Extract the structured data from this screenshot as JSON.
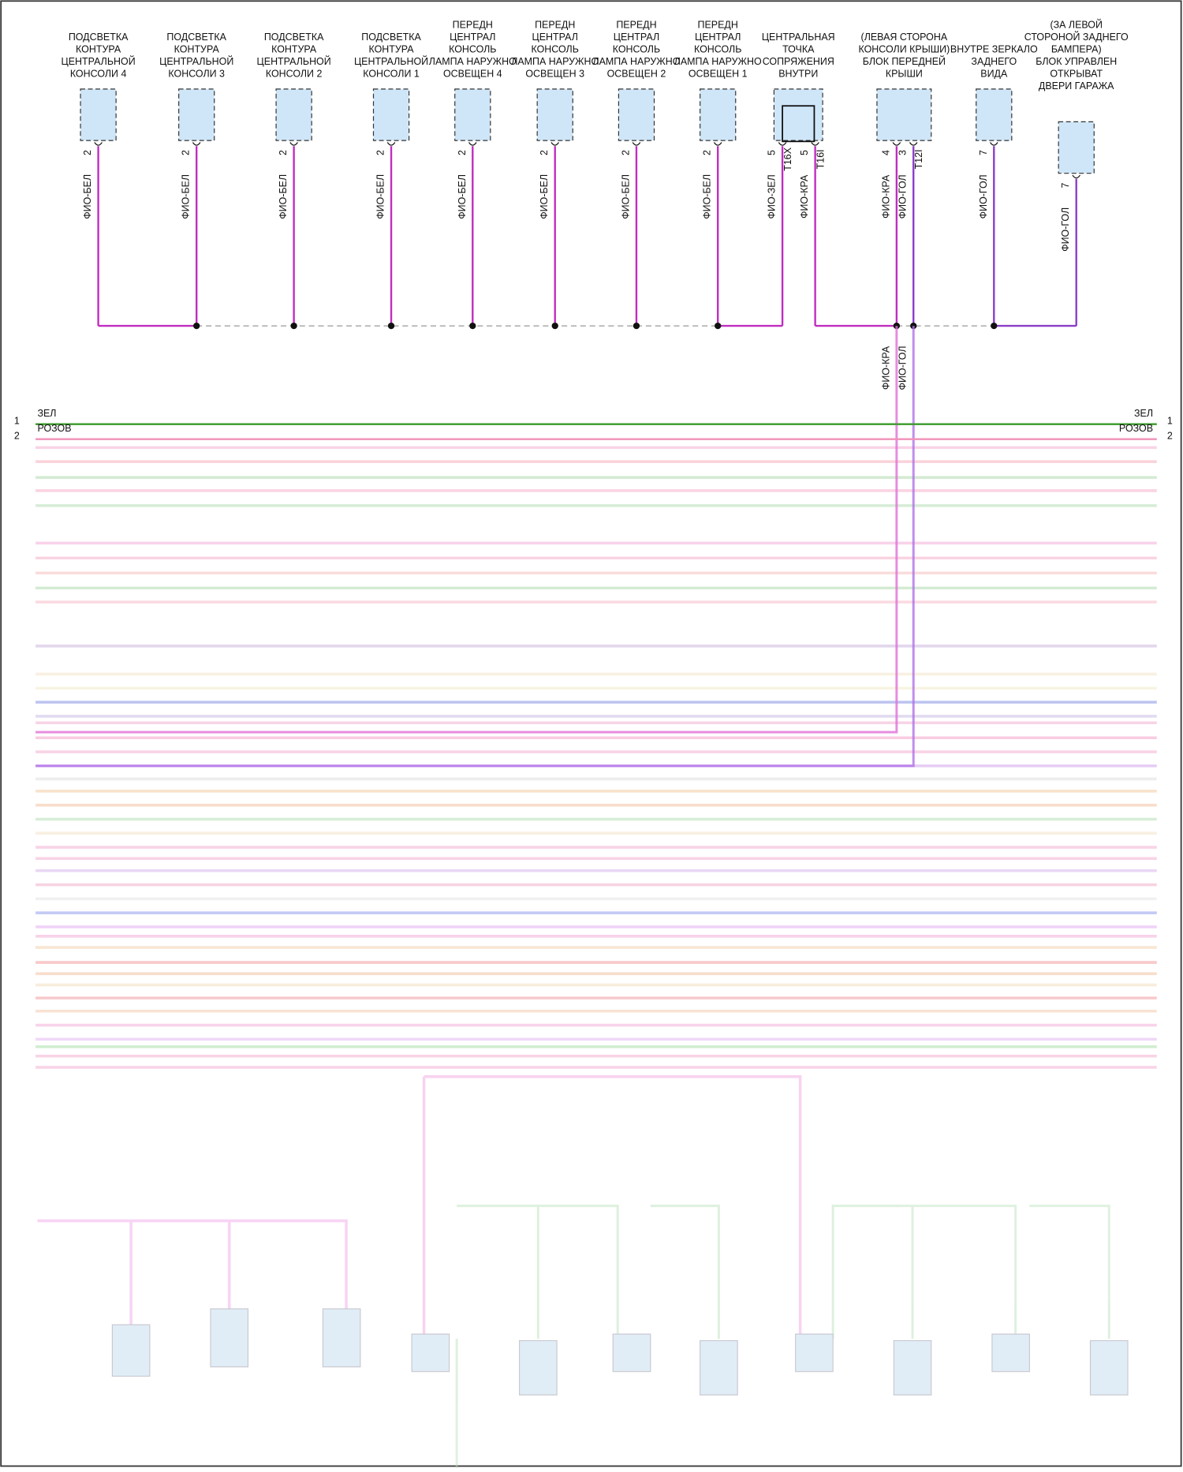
{
  "components": [
    {
      "label": [
        "ПОДСВЕТКА",
        "КОНТУРА",
        "ЦЕНТРАЛЬНОЙ",
        "КОНСОЛИ 4"
      ],
      "pins": [
        {
          "pin": "2",
          "wire": "ФИО-БЕЛ"
        }
      ]
    },
    {
      "label": [
        "ПОДСВЕТКА",
        "КОНТУРА",
        "ЦЕНТРАЛЬНОЙ",
        "КОНСОЛИ 3"
      ],
      "pins": [
        {
          "pin": "2",
          "wire": "ФИО-БЕЛ"
        }
      ]
    },
    {
      "label": [
        "ПОДСВЕТКА",
        "КОНТУРА",
        "ЦЕНТРАЛЬНОЙ",
        "КОНСОЛИ 2"
      ],
      "pins": [
        {
          "pin": "2",
          "wire": "ФИО-БЕЛ"
        }
      ]
    },
    {
      "label": [
        "ПОДСВЕТКА",
        "КОНТУРА",
        "ЦЕНТРАЛЬНОЙ",
        "КОНСОЛИ 1"
      ],
      "pins": [
        {
          "pin": "2",
          "wire": "ФИО-БЕЛ"
        }
      ]
    },
    {
      "label": [
        "ПЕРЕДН",
        "ЦЕНТРАЛ",
        "КОНСОЛЬ",
        "ЛАМПА НАРУЖНО",
        "ОСВЕЩЕН 4"
      ],
      "pins": [
        {
          "pin": "2",
          "wire": "ФИО-БЕЛ"
        }
      ]
    },
    {
      "label": [
        "ПЕРЕДН",
        "ЦЕНТРАЛ",
        "КОНСОЛЬ",
        "ЛАМПА НАРУЖНО",
        "ОСВЕЩЕН 3"
      ],
      "pins": [
        {
          "pin": "2",
          "wire": "ФИО-БЕЛ"
        }
      ]
    },
    {
      "label": [
        "ПЕРЕДН",
        "ЦЕНТРАЛ",
        "КОНСОЛЬ",
        "ЛАМПА НАРУЖНО",
        "ОСВЕЩЕН 2"
      ],
      "pins": [
        {
          "pin": "2",
          "wire": "ФИО-БЕЛ"
        }
      ]
    },
    {
      "label": [
        "ПЕРЕДН",
        "ЦЕНТРАЛ",
        "КОНСОЛЬ",
        "ЛАМПА НАРУЖНО",
        "ОСВЕЩЕН 1"
      ],
      "pins": [
        {
          "pin": "2",
          "wire": "ФИО-БЕЛ"
        }
      ]
    },
    {
      "label": [
        "ЦЕНТРАЛЬНАЯ",
        "ТОЧКА",
        "СОПРЯЖЕНИЯ",
        "ВНУТРИ"
      ],
      "pins": [
        {
          "pin": "5",
          "wire": "ФИО-ЗЕЛ",
          "connector": "T16X"
        },
        {
          "pin": "5",
          "wire": "ФИО-КРА",
          "connector": "T16I"
        }
      ]
    },
    {
      "label": [
        "(ЛЕВАЯ СТОРОНА",
        "КОНСОЛИ КРЫШИ)",
        "БЛОК ПЕРЕДНЕЙ",
        "КРЫШИ"
      ],
      "pins": [
        {
          "pin": "4",
          "wire": "ФИО-КРА"
        },
        {
          "pin": "3",
          "wire": "ФИО-ГОЛ",
          "connector": "T12I"
        }
      ]
    },
    {
      "label": [
        "ВНУТРЕ ЗЕРКАЛО",
        "ЗАДНЕГО",
        "ВИДА"
      ],
      "pins": [
        {
          "pin": "7",
          "wire": "ФИО-ГОЛ"
        }
      ]
    },
    {
      "label": [
        "(ЗА ЛЕВОЙ",
        "СТОРОНОЙ ЗАДНЕГО",
        "БАМПЕРА)",
        "БЛОК УПРАВЛЕН",
        "ОТКРЫВАТ",
        "ДВЕРИ ГАРАЖА"
      ],
      "pins": [
        {
          "pin": "7",
          "wire": "ФИО-ГОЛ"
        }
      ]
    }
  ],
  "drop_wires": [
    "ФИО-КРА",
    "ФИО-ГОЛ"
  ],
  "bus": [
    {
      "number": "1",
      "wire": "ЗЕЛ"
    },
    {
      "number": "2",
      "wire": "РОЗОВ"
    }
  ]
}
